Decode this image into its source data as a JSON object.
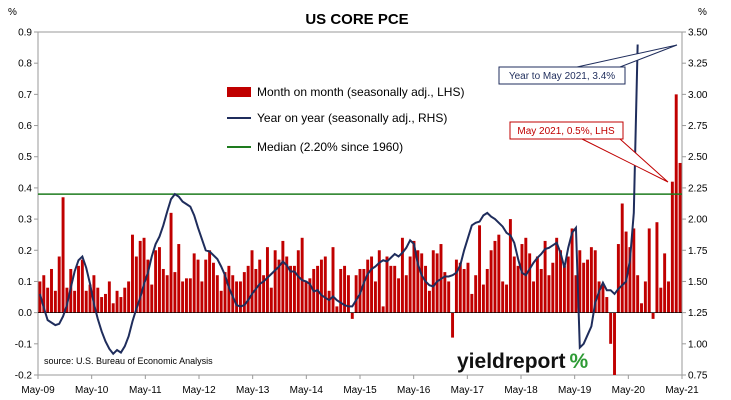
{
  "chart_data": {
    "type": "bar",
    "title": "US CORE PCE",
    "left_axis_unit": "%",
    "right_axis_unit": "%",
    "ylim_left": [
      -0.2,
      0.9
    ],
    "ylim_right": [
      0.75,
      3.5
    ],
    "y_ticks_left": [
      "-0.2",
      "-0.1",
      "0.0",
      "0.1",
      "0.2",
      "0.3",
      "0.4",
      "0.5",
      "0.6",
      "0.7",
      "0.8",
      "0.9"
    ],
    "y_ticks_right": [
      "0.75",
      "1.00",
      "1.25",
      "1.50",
      "1.75",
      "2.00",
      "2.25",
      "2.50",
      "2.75",
      "3.00",
      "3.25",
      "3.50"
    ],
    "x_ticks": [
      "May-09",
      "May-10",
      "May-11",
      "May-12",
      "May-13",
      "May-14",
      "May-15",
      "May-16",
      "May-17",
      "May-18",
      "May-19",
      "May-20",
      "May-21"
    ],
    "x_start": "2009-05",
    "x_end": "2021-05",
    "legend": [
      {
        "label": "Month on month (seasonally adj., LHS)",
        "marker": "bar",
        "color": "#c00000"
      },
      {
        "label": "Year on year (seasonally adj., RHS)",
        "marker": "line",
        "color": "#1f2d5c"
      },
      {
        "label": "Median (2.20% since 1960)",
        "marker": "line",
        "color": "#1e7b1e"
      }
    ],
    "median_rhs": 2.2,
    "series": [
      {
        "name": "Month on month (seasonally adj., LHS)",
        "type": "bar",
        "axis": "left",
        "color": "#c00000",
        "values": [
          0.1,
          0.12,
          0.08,
          0.14,
          0.07,
          0.18,
          0.37,
          0.08,
          0.14,
          0.07,
          0.15,
          0.17,
          0.07,
          0.09,
          0.12,
          0.08,
          0.05,
          0.06,
          0.1,
          0.03,
          0.07,
          0.05,
          0.08,
          0.1,
          0.25,
          0.18,
          0.23,
          0.24,
          0.17,
          0.09,
          0.2,
          0.21,
          0.14,
          0.12,
          0.32,
          0.13,
          0.22,
          0.1,
          0.11,
          0.11,
          0.19,
          0.17,
          0.1,
          0.17,
          0.2,
          0.16,
          0.12,
          0.07,
          0.13,
          0.15,
          0.12,
          0.1,
          0.1,
          0.13,
          0.15,
          0.2,
          0.14,
          0.17,
          0.12,
          0.21,
          0.08,
          0.2,
          0.17,
          0.23,
          0.18,
          0.15,
          0.15,
          0.2,
          0.24,
          0.1,
          0.11,
          0.14,
          0.15,
          0.17,
          0.18,
          0.07,
          0.21,
          0.02,
          0.14,
          0.15,
          0.12,
          -0.02,
          0.12,
          0.14,
          0.14,
          0.17,
          0.18,
          0.1,
          0.2,
          0.02,
          0.18,
          0.15,
          0.15,
          0.11,
          0.24,
          0.12,
          0.18,
          0.23,
          0.2,
          0.19,
          0.15,
          0.07,
          0.2,
          0.19,
          0.22,
          0.13,
          0.1,
          -0.08,
          0.17,
          0.16,
          0.14,
          0.16,
          0.06,
          0.12,
          0.28,
          0.09,
          0.14,
          0.2,
          0.23,
          0.25,
          0.1,
          0.09,
          0.3,
          0.18,
          0.15,
          0.22,
          0.24,
          0.19,
          0.1,
          0.18,
          0.14,
          0.23,
          0.12,
          0.16,
          0.24,
          0.2,
          0.15,
          0.18,
          0.27,
          0.12,
          0.2,
          0.16,
          0.17,
          0.21,
          0.2,
          0.1,
          0.09,
          0.05,
          -0.1,
          -0.2,
          0.22,
          0.35,
          0.26,
          0.21,
          0.27,
          0.12,
          0.03,
          0.1,
          0.27,
          -0.02,
          0.29,
          0.08,
          0.19,
          0.1,
          0.42,
          0.7,
          0.48
        ]
      },
      {
        "name": "Year on year (seasonally adj., RHS)",
        "type": "line",
        "axis": "right",
        "color": "#1f2d5c",
        "values": [
          1.4,
          1.29,
          1.19,
          1.17,
          1.15,
          1.16,
          1.22,
          1.31,
          1.45,
          1.58,
          1.67,
          1.7,
          1.61,
          1.48,
          1.32,
          1.2,
          1.1,
          1.02,
          0.96,
          0.92,
          0.95,
          0.93,
          0.98,
          1.06,
          1.18,
          1.28,
          1.37,
          1.48,
          1.57,
          1.7,
          1.8,
          1.86,
          1.95,
          2.06,
          2.16,
          2.2,
          2.18,
          2.14,
          2.12,
          2.1,
          2.03,
          1.93,
          1.84,
          1.75,
          1.74,
          1.71,
          1.68,
          1.62,
          1.55,
          1.45,
          1.38,
          1.31,
          1.3,
          1.31,
          1.35,
          1.4,
          1.44,
          1.48,
          1.5,
          1.53,
          1.56,
          1.59,
          1.62,
          1.66,
          1.63,
          1.58,
          1.58,
          1.54,
          1.51,
          1.5,
          1.48,
          1.42,
          1.43,
          1.39,
          1.37,
          1.35,
          1.38,
          1.35,
          1.33,
          1.31,
          1.3,
          1.3,
          1.35,
          1.4,
          1.49,
          1.56,
          1.6,
          1.62,
          1.65,
          1.67,
          1.66,
          1.69,
          1.72,
          1.7,
          1.73,
          1.77,
          1.83,
          1.8,
          1.64,
          1.55,
          1.5,
          1.47,
          1.46,
          1.5,
          1.52,
          1.54,
          1.54,
          1.55,
          1.57,
          1.63,
          1.75,
          1.85,
          1.95,
          1.97,
          1.98,
          2.03,
          2.05,
          2.02,
          2.0,
          1.97,
          1.94,
          1.89,
          1.87,
          1.81,
          1.68,
          1.57,
          1.55,
          1.6,
          1.65,
          1.69,
          1.72,
          1.76,
          1.77,
          1.79,
          1.81,
          1.73,
          1.61,
          1.77,
          1.89,
          1.93,
          0.97,
          1.0,
          1.07,
          1.14,
          1.33,
          1.42,
          1.49,
          1.43,
          1.43,
          1.4,
          1.44,
          1.47,
          1.5,
          1.67,
          2.05,
          3.4
        ]
      }
    ],
    "annotations": [
      {
        "text": "Year to May 2021, 3.4%",
        "color": "#1f2d5c"
      },
      {
        "text": "May 2021, 0.5%, LHS",
        "color": "#c00000"
      }
    ],
    "source": "source: U.S. Bureau of Economic Analysis",
    "brand": {
      "text": "yieldreport",
      "symbol": "%",
      "symbol_color": "#2e9b35"
    },
    "grid": false
  }
}
